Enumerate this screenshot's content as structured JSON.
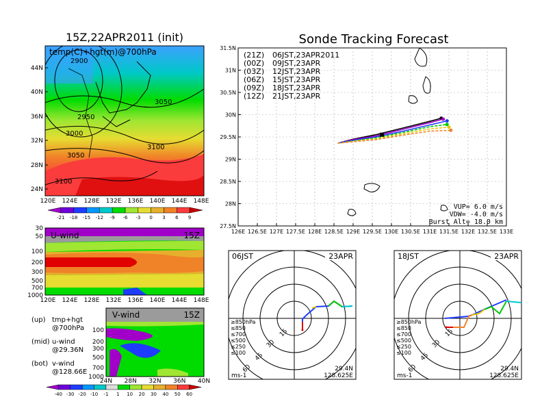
{
  "left_title": "15Z,22APR2011 (init)",
  "map_label": "temp(C)+hgt(m)@700hPa",
  "map_contour_labels": [
    "2900",
    "2950",
    "3000",
    "3050",
    "3050",
    "3100",
    "3100"
  ],
  "map_lat_ticks": [
    "44N",
    "40N",
    "36N",
    "32N",
    "28N",
    "24N"
  ],
  "lon_ticks": [
    "120E",
    "124E",
    "128E",
    "132E",
    "136E",
    "140E",
    "144E",
    "148E"
  ],
  "temp_scale_labels": [
    "-21",
    "-18",
    "-15",
    "-12",
    "-9",
    "-6",
    "-3",
    "0",
    "3",
    "6",
    "9"
  ],
  "temp_scale_colors": [
    "#a000c8",
    "#6e00dc",
    "#1e3cff",
    "#0096ff",
    "#00c8c8",
    "#00dc00",
    "#a0e632",
    "#e6dc32",
    "#e6af2d",
    "#f08228",
    "#fa3c3c",
    "#c80000"
  ],
  "u_panel": {
    "label": "U-wind",
    "time": "15Z",
    "p_ticks": [
      "30",
      "50",
      "100",
      "200",
      "300",
      "500",
      "700",
      "1000"
    ]
  },
  "v_panel": {
    "label": "V-wind",
    "time": "15Z",
    "p_ticks": [
      "100",
      "200",
      "300",
      "500",
      "700",
      "1000"
    ],
    "x_ticks": [
      "24N",
      "28N",
      "32N",
      "36N",
      "40N"
    ]
  },
  "legend_notes": [
    {
      "tag": "(up)",
      "line1": "tmp+hgt",
      "line2": "@700hPa"
    },
    {
      "tag": "(mid)",
      "line1": "u-wind",
      "line2": "@29.36N"
    },
    {
      "tag": "(bot)",
      "line1": "v-wind",
      "line2": "@128.66E"
    }
  ],
  "wind_scale_labels": [
    "-40",
    "-30",
    "-20",
    "-10",
    "-1",
    "1",
    "10",
    "20",
    "30",
    "40",
    "50",
    "60"
  ],
  "wind_scale_colors": [
    "#a000c8",
    "#6e00dc",
    "#1e3cff",
    "#0096ff",
    "#00c8c8",
    "#dcdcdc",
    "#00dc00",
    "#a0e632",
    "#e6dc32",
    "#e6af2d",
    "#f08228",
    "#fa3c3c",
    "#c80000"
  ],
  "right_title": "Sonde Tracking Forecast",
  "track_legend": [
    {
      "code": "(21Z)",
      "label": "06JST,23APR2011",
      "color": "#000000"
    },
    {
      "code": "(00Z)",
      "label": "09JST,23APR",
      "color": "#a000c8"
    },
    {
      "code": "(03Z)",
      "label": "12JST,23APR",
      "color": "#1e3cff"
    },
    {
      "code": "(06Z)",
      "label": "15JST,23APR",
      "color": "#00c800"
    },
    {
      "code": "(09Z)",
      "label": "18JST,23APR",
      "color": "#e6c800"
    },
    {
      "code": "(12Z)",
      "label": "21JST,23APR",
      "color": "#f08228"
    }
  ],
  "track_info": [
    "VUP=  6.0  m/s",
    "VDW= -4.0  m/s",
    "Burst Alt= 18.0  km"
  ],
  "chart_data": {
    "type": "line",
    "title": "Sonde Tracking Forecast",
    "xlim": [
      126,
      133
    ],
    "ylim": [
      27.5,
      31.5
    ],
    "x_ticks": [
      "126E",
      "126.5E",
      "127E",
      "127.5E",
      "128E",
      "128.5E",
      "129E",
      "129.5E",
      "130E",
      "130.5E",
      "131E",
      "131.5E",
      "132E",
      "132.5E",
      "133E"
    ],
    "y_ticks": [
      "27.5N",
      "28N",
      "28.5N",
      "29N",
      "29.5N",
      "30N",
      "30.5N",
      "31N",
      "31.5N"
    ],
    "grid": true,
    "series": [
      {
        "name": "(21Z) 06JST,23APR2011",
        "color": "#000000",
        "lon": [
          128.6,
          129.0,
          129.6,
          130.3,
          131.0,
          131.3
        ],
        "lat": [
          29.36,
          29.45,
          29.55,
          29.7,
          29.85,
          29.92
        ]
      },
      {
        "name": "(00Z) 09JST,23APR",
        "color": "#a000c8",
        "lon": [
          128.6,
          129.0,
          129.6,
          130.3,
          131.0,
          131.35
        ],
        "lat": [
          29.36,
          29.44,
          29.52,
          29.67,
          29.82,
          29.9
        ]
      },
      {
        "name": "(03Z) 12JST,23APR",
        "color": "#1e3cff",
        "lon": [
          128.6,
          129.0,
          129.6,
          130.3,
          131.0,
          131.45
        ],
        "lat": [
          29.36,
          29.42,
          29.5,
          29.63,
          29.77,
          29.86
        ]
      },
      {
        "name": "(06Z) 15JST,23APR",
        "color": "#00c800",
        "lon": [
          128.6,
          129.0,
          129.6,
          130.3,
          131.0,
          131.45
        ],
        "lat": [
          29.36,
          29.41,
          29.48,
          29.6,
          29.73,
          29.78
        ]
      },
      {
        "name": "(09Z) 18JST,23APR",
        "color": "#e6c800",
        "lon": [
          128.6,
          129.0,
          129.6,
          130.3,
          131.0,
          131.5
        ],
        "lat": [
          29.36,
          29.4,
          29.46,
          29.57,
          29.68,
          29.72
        ]
      },
      {
        "name": "(12Z) 21JST,23APR",
        "color": "#f08228",
        "lon": [
          128.6,
          129.0,
          129.6,
          130.3,
          131.0,
          131.55
        ],
        "lat": [
          29.36,
          29.39,
          29.44,
          29.54,
          29.63,
          29.65
        ]
      }
    ]
  },
  "polar_left": {
    "time": "06JST",
    "date": "23APR",
    "ring_labels": [
      "15",
      "30",
      "45",
      "60"
    ],
    "levels": [
      "≥850hPa",
      "≤850",
      "≤700",
      "≤500",
      "≤250",
      "≤100"
    ],
    "level_colors": [
      "#dc0000",
      "#f08228",
      "#e6c800",
      "#00c800",
      "#00c8c8",
      "#1e3cff"
    ],
    "unit": "ms-1",
    "lat": "29.4N",
    "lon": "128.625E"
  },
  "polar_right": {
    "time": "18JST",
    "date": "23APR",
    "ring_labels": [
      "15",
      "30",
      "45",
      "60"
    ],
    "levels": [
      "≥850hPa",
      "≤850",
      "≤700",
      "≤500",
      "≤250",
      "≤100"
    ],
    "level_colors": [
      "#dc0000",
      "#f08228",
      "#e6c800",
      "#00c800",
      "#00c8c8",
      "#1e3cff"
    ],
    "unit": "ms-1",
    "lat": "29.4N",
    "lon": "128.625E"
  }
}
